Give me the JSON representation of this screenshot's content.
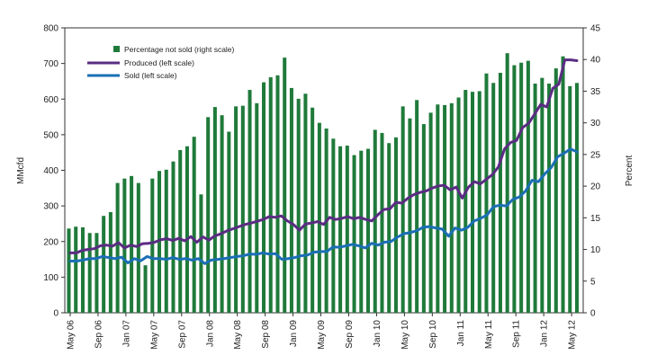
{
  "chart_data": {
    "type": "bar",
    "ylabel_left": "MMcfd",
    "ylabel_right": "Percent",
    "ylim_left": [
      0,
      800
    ],
    "ylim_right": [
      0,
      45
    ],
    "yticks_left": [
      "0",
      "100",
      "200",
      "300",
      "400",
      "500",
      "600",
      "700",
      "800"
    ],
    "yticks_right": [
      "0",
      "5",
      "10",
      "15",
      "20",
      "25",
      "30",
      "35",
      "40",
      "45"
    ],
    "xtick_labels": [
      "May 06",
      "Sep 06",
      "Jan 07",
      "May 07",
      "Sep 07",
      "Jan 08",
      "May 08",
      "Sep 08",
      "Jan 09",
      "May 09",
      "Sep 09",
      "Jan 10",
      "May 10",
      "Sep 10",
      "Jan 11",
      "May 11",
      "Sep 11",
      "Jan 12",
      "May 12"
    ],
    "colors": {
      "bars": "#1f7a3a",
      "produced": "#5b2c83",
      "sold": "#1b6fb5"
    },
    "legend": {
      "bars": "Percentage not sold (right scale)",
      "produced": "Produced (left scale)",
      "sold": "Sold (left scale)"
    },
    "series": [
      {
        "name": "Percentage not sold (right scale)",
        "axis": "right",
        "kind": "bar",
        "values": [
          13.3,
          13.6,
          13.5,
          12.6,
          12.6,
          15.3,
          15.9,
          20.5,
          21.2,
          21.6,
          20.5,
          7.5,
          21.2,
          22.4,
          22.6,
          23.9,
          25.7,
          26.3,
          27.8,
          18.7,
          30.9,
          32.5,
          31.2,
          28.6,
          32.6,
          32.7,
          35.2,
          33.1,
          36.4,
          37.2,
          37.5,
          40.3,
          35.5,
          33.8,
          34.6,
          32.4,
          30.0,
          29.1,
          27.5,
          26.3,
          26.4,
          24.9,
          25.6,
          25.9,
          28.9,
          28.4,
          26.8,
          27.7,
          32.6,
          30.7,
          33.6,
          29.8,
          31.6,
          32.9,
          32.8,
          33.1,
          34.0,
          35.2,
          34.9,
          35.0,
          37.8,
          36.3,
          37.9,
          41.0,
          39.1,
          39.5,
          39.8,
          36.2,
          37.1,
          36.2,
          38.6,
          40.5,
          35.8,
          36.3
        ]
      },
      {
        "name": "Produced (left scale)",
        "axis": "left",
        "kind": "line",
        "values": [
          168,
          168,
          175,
          178,
          180,
          188,
          190,
          187,
          197,
          182,
          190,
          186,
          194,
          195,
          198,
          205,
          208,
          203,
          209,
          202,
          214,
          198,
          213,
          204,
          216,
          222,
          230,
          236,
          242,
          248,
          252,
          257,
          262,
          270,
          268,
          272,
          258,
          248,
          232,
          249,
          252,
          256,
          248,
          268,
          262,
          265,
          270,
          264,
          268,
          262,
          258,
          275,
          290,
          292,
          310,
          308,
          322,
          332,
          338,
          342,
          350,
          356,
          358,
          345,
          353,
          322,
          352,
          368,
          362,
          375,
          388,
          410,
          460,
          478,
          484,
          520,
          532,
          558,
          585,
          578,
          630,
          642,
          710,
          710,
          708
        ]
      },
      {
        "name": "Sold (left scale)",
        "axis": "left",
        "kind": "line",
        "values": [
          145,
          145,
          148,
          152,
          152,
          158,
          155,
          152,
          156,
          140,
          152,
          146,
          158,
          152,
          152,
          150,
          155,
          150,
          152,
          148,
          152,
          138,
          148,
          150,
          152,
          155,
          158,
          160,
          165,
          164,
          168,
          165,
          166,
          150,
          152,
          155,
          160,
          162,
          170,
          172,
          172,
          185,
          184,
          188,
          192,
          188,
          182,
          195,
          190,
          198,
          200,
          212,
          222,
          225,
          230,
          240,
          242,
          238,
          235,
          215,
          238,
          232,
          240,
          258,
          265,
          275,
          298,
          302,
          300,
          318,
          325,
          342,
          372,
          368,
          390,
          408,
          438,
          448,
          460,
          452
        ]
      }
    ]
  }
}
